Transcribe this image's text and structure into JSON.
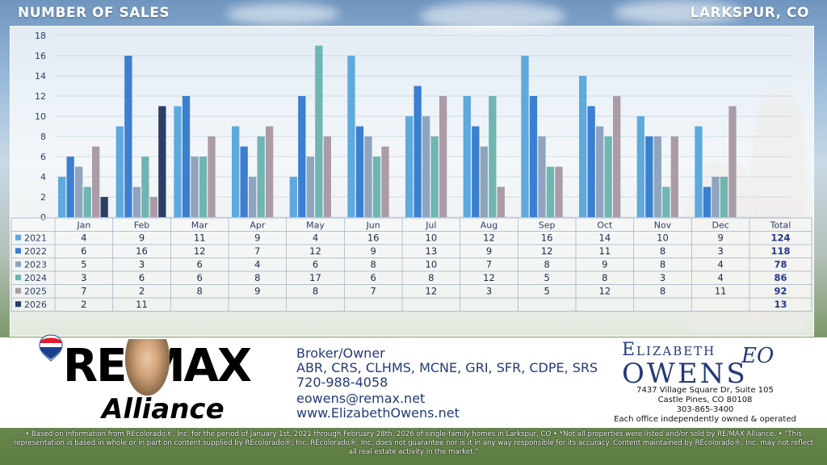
{
  "header": {
    "title": "NUMBER OF SALES",
    "location": "LARKSPUR, CO"
  },
  "chart_data": {
    "type": "bar",
    "categories": [
      "Jan",
      "Feb",
      "Mar",
      "Apr",
      "May",
      "Jun",
      "Jul",
      "Aug",
      "Sep",
      "Oct",
      "Nov",
      "Dec"
    ],
    "ylim": [
      0,
      18
    ],
    "yticks": [
      "0",
      "2",
      "4",
      "6",
      "8",
      "10",
      "12",
      "14",
      "16",
      "18"
    ],
    "grid": true,
    "legend": "table-left",
    "total_label": "Total",
    "series": [
      {
        "name": "2021",
        "color": "#5ea9dd",
        "values": [
          4,
          9,
          11,
          9,
          4,
          16,
          10,
          12,
          16,
          14,
          10,
          9
        ],
        "total": "124"
      },
      {
        "name": "2022",
        "color": "#3b7fd0",
        "values": [
          6,
          16,
          12,
          7,
          12,
          9,
          13,
          9,
          12,
          11,
          8,
          3
        ],
        "total": "118"
      },
      {
        "name": "2023",
        "color": "#8fa4be",
        "values": [
          5,
          3,
          6,
          4,
          6,
          8,
          10,
          7,
          8,
          9,
          8,
          4
        ],
        "total": "78"
      },
      {
        "name": "2024",
        "color": "#6fb5b1",
        "values": [
          3,
          6,
          6,
          8,
          17,
          6,
          8,
          12,
          5,
          8,
          3,
          4
        ],
        "total": "86"
      },
      {
        "name": "2025",
        "color": "#ab9ba7",
        "values": [
          7,
          2,
          8,
          9,
          8,
          7,
          12,
          3,
          5,
          12,
          8,
          11
        ],
        "total": "92"
      },
      {
        "name": "2026",
        "color": "#2d3e63",
        "values": [
          2,
          11,
          null,
          null,
          null,
          null,
          null,
          null,
          null,
          null,
          null,
          null
        ],
        "total": "13"
      }
    ]
  },
  "footer": {
    "brand_main": "RE/MAX",
    "brand_sub": "Alliance",
    "title": "Broker/Owner",
    "credentials": "ABR, CRS, CLHMS, MCNE, GRI, SFR, CDPE, SRS",
    "phone": "720-988-4058",
    "email": "eowens@remax.net",
    "website": "www.ElizabethOwens.net",
    "logo_first": "Elizabeth",
    "logo_last": "Owens",
    "logo_mark": "EO",
    "address1": "7437 Village Square Dr, Suite 105",
    "address2": "Castle Pines, CO 80108",
    "office_phone": "303-865-3400",
    "office_note": "Each office independently owned & operated"
  },
  "disclaimer": "• Based on information from REcolorado®, Inc. for the period of January 1st, 2021 through February 28th, 2026 of single-family homes in Larkspur, CO • *Not all properties were listed and/or sold by RE/MAX Alliance. • \"This representation is based in whole or in part on content supplied by REcolorado®, Inc. REcolorado®, Inc. does not guarantee nor is it in any way responsible for its accuracy. Content maintained by REcolorado®, Inc. may not reflect all real estate activity in the market.\""
}
